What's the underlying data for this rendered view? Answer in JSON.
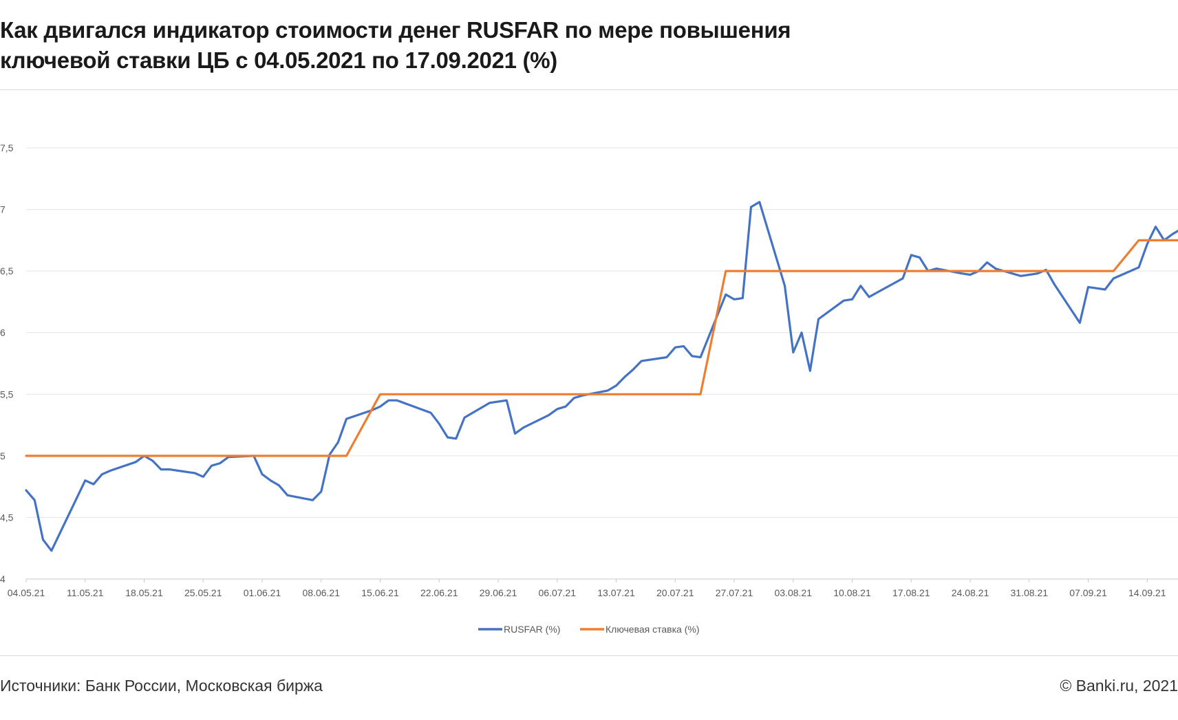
{
  "header": {
    "title_line1": "Как двигался индикатор стоимости денег RUSFAR по мере повышения",
    "title_line2": "ключевой ставки ЦБ с 04.05.2021 по 17.09.2021 (%)"
  },
  "footer": {
    "sources": "Источники: Банк России, Московская биржа",
    "copyright": "© Banki.ru, 2021"
  },
  "chart_data": {
    "type": "line",
    "title": "Как двигался индикатор стоимости денег RUSFAR по мере повышения ключевой ставки ЦБ с 04.05.2021 по 17.09.2021 (%)",
    "xlabel": "",
    "ylabel": "",
    "ylim": [
      4,
      7.5
    ],
    "yticks": [
      "4",
      "4,5",
      "5",
      "5,5",
      "6",
      "6,5",
      "7",
      "7,5"
    ],
    "y_tick_values": [
      4,
      4.5,
      5,
      5.5,
      6,
      6.5,
      7,
      7.5
    ],
    "x_range": [
      "2021-05-04",
      "2021-09-17"
    ],
    "x_tick_labels": [
      "04.05.21",
      "11.05.21",
      "18.05.21",
      "25.05.21",
      "01.06.21",
      "08.06.21",
      "15.06.21",
      "22.06.21",
      "29.06.21",
      "06.07.21",
      "13.07.21",
      "20.07.21",
      "27.07.21",
      "03.08.21",
      "10.08.21",
      "17.08.21",
      "24.08.21",
      "31.08.21",
      "07.09.21",
      "14.09.21"
    ],
    "x_tick_dates": [
      "2021-05-04",
      "2021-05-11",
      "2021-05-18",
      "2021-05-25",
      "2021-06-01",
      "2021-06-08",
      "2021-06-15",
      "2021-06-22",
      "2021-06-29",
      "2021-07-06",
      "2021-07-13",
      "2021-07-20",
      "2021-07-27",
      "2021-08-03",
      "2021-08-10",
      "2021-08-17",
      "2021-08-24",
      "2021-08-31",
      "2021-09-07",
      "2021-09-14"
    ],
    "grid": true,
    "legend_position": "bottom-center",
    "series": [
      {
        "name": "RUSFAR (%)",
        "color": "#4472c4",
        "points": [
          [
            "2021-05-04",
            4.72
          ],
          [
            "2021-05-05",
            4.64
          ],
          [
            "2021-05-06",
            4.32
          ],
          [
            "2021-05-07",
            4.23
          ],
          [
            "2021-05-11",
            4.8
          ],
          [
            "2021-05-12",
            4.77
          ],
          [
            "2021-05-13",
            4.85
          ],
          [
            "2021-05-14",
            4.88
          ],
          [
            "2021-05-17",
            4.95
          ],
          [
            "2021-05-18",
            5.0
          ],
          [
            "2021-05-19",
            4.96
          ],
          [
            "2021-05-20",
            4.89
          ],
          [
            "2021-05-21",
            4.89
          ],
          [
            "2021-05-24",
            4.86
          ],
          [
            "2021-05-25",
            4.83
          ],
          [
            "2021-05-26",
            4.92
          ],
          [
            "2021-05-27",
            4.94
          ],
          [
            "2021-05-28",
            4.99
          ],
          [
            "2021-05-31",
            5.0
          ],
          [
            "2021-06-01",
            4.85
          ],
          [
            "2021-06-02",
            4.8
          ],
          [
            "2021-06-03",
            4.76
          ],
          [
            "2021-06-04",
            4.68
          ],
          [
            "2021-06-07",
            4.64
          ],
          [
            "2021-06-08",
            4.71
          ],
          [
            "2021-06-09",
            5.01
          ],
          [
            "2021-06-10",
            5.11
          ],
          [
            "2021-06-11",
            5.3
          ],
          [
            "2021-06-14",
            5.37
          ],
          [
            "2021-06-15",
            5.4
          ],
          [
            "2021-06-16",
            5.45
          ],
          [
            "2021-06-17",
            5.45
          ],
          [
            "2021-06-21",
            5.35
          ],
          [
            "2021-06-22",
            5.26
          ],
          [
            "2021-06-23",
            5.15
          ],
          [
            "2021-06-24",
            5.14
          ],
          [
            "2021-06-25",
            5.31
          ],
          [
            "2021-06-28",
            5.43
          ],
          [
            "2021-06-29",
            5.44
          ],
          [
            "2021-06-30",
            5.45
          ],
          [
            "2021-07-01",
            5.18
          ],
          [
            "2021-07-02",
            5.23
          ],
          [
            "2021-07-05",
            5.33
          ],
          [
            "2021-07-06",
            5.38
          ],
          [
            "2021-07-07",
            5.4
          ],
          [
            "2021-07-08",
            5.47
          ],
          [
            "2021-07-09",
            5.49
          ],
          [
            "2021-07-12",
            5.53
          ],
          [
            "2021-07-13",
            5.57
          ],
          [
            "2021-07-14",
            5.64
          ],
          [
            "2021-07-15",
            5.7
          ],
          [
            "2021-07-16",
            5.77
          ],
          [
            "2021-07-19",
            5.8
          ],
          [
            "2021-07-20",
            5.88
          ],
          [
            "2021-07-21",
            5.89
          ],
          [
            "2021-07-22",
            5.81
          ],
          [
            "2021-07-23",
            5.8
          ],
          [
            "2021-07-26",
            6.31
          ],
          [
            "2021-07-27",
            6.27
          ],
          [
            "2021-07-28",
            6.28
          ],
          [
            "2021-07-29",
            7.02
          ],
          [
            "2021-07-30",
            7.06
          ],
          [
            "2021-08-02",
            6.38
          ],
          [
            "2021-08-03",
            5.84
          ],
          [
            "2021-08-04",
            6.0
          ],
          [
            "2021-08-05",
            5.69
          ],
          [
            "2021-08-06",
            6.11
          ],
          [
            "2021-08-09",
            6.26
          ],
          [
            "2021-08-10",
            6.27
          ],
          [
            "2021-08-11",
            6.38
          ],
          [
            "2021-08-12",
            6.29
          ],
          [
            "2021-08-16",
            6.44
          ],
          [
            "2021-08-17",
            6.63
          ],
          [
            "2021-08-18",
            6.61
          ],
          [
            "2021-08-19",
            6.5
          ],
          [
            "2021-08-20",
            6.52
          ],
          [
            "2021-08-23",
            6.48
          ],
          [
            "2021-08-24",
            6.47
          ],
          [
            "2021-08-25",
            6.5
          ],
          [
            "2021-08-26",
            6.57
          ],
          [
            "2021-08-27",
            6.52
          ],
          [
            "2021-08-30",
            6.46
          ],
          [
            "2021-08-31",
            6.47
          ],
          [
            "2021-09-01",
            6.48
          ],
          [
            "2021-09-02",
            6.51
          ],
          [
            "2021-09-03",
            6.39
          ],
          [
            "2021-09-06",
            6.08
          ],
          [
            "2021-09-07",
            6.37
          ],
          [
            "2021-09-08",
            6.36
          ],
          [
            "2021-09-09",
            6.35
          ],
          [
            "2021-09-10",
            6.44
          ],
          [
            "2021-09-13",
            6.53
          ],
          [
            "2021-09-14",
            6.72
          ],
          [
            "2021-09-15",
            6.86
          ],
          [
            "2021-09-16",
            6.75
          ],
          [
            "2021-09-17",
            6.8
          ],
          [
            "2021-09-18",
            6.84
          ],
          [
            "2021-09-19",
            6.79
          ],
          [
            "2021-09-20",
            6.8
          ]
        ]
      },
      {
        "name": "Ключевая ставка (%)",
        "color": "#ed7d31",
        "points": [
          [
            "2021-05-04",
            5.0
          ],
          [
            "2021-06-11",
            5.0
          ],
          [
            "2021-06-15",
            5.5
          ],
          [
            "2021-07-23",
            5.5
          ],
          [
            "2021-07-26",
            6.5
          ],
          [
            "2021-09-10",
            6.5
          ],
          [
            "2021-09-13",
            6.75
          ],
          [
            "2021-09-20",
            6.75
          ]
        ]
      }
    ]
  }
}
